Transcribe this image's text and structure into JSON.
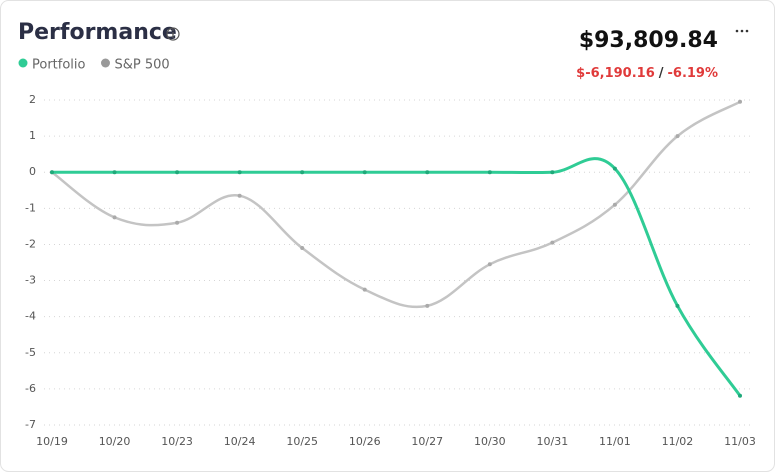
{
  "header": {
    "title": "Performance",
    "value": "$93,809.84",
    "change": "$-6,190.16",
    "separator": "/",
    "change_pct": "-6.19%"
  },
  "chart_data": {
    "type": "line",
    "categories": [
      "10/19",
      "10/20",
      "10/23",
      "10/24",
      "10/25",
      "10/26",
      "10/27",
      "10/30",
      "10/31",
      "11/01",
      "11/02",
      "11/03"
    ],
    "series": [
      {
        "name": "Portfolio",
        "color": "#2fcc95",
        "values": [
          0,
          0,
          0,
          0,
          0,
          0,
          0,
          0,
          0,
          0.1,
          -3.7,
          -6.19
        ]
      },
      {
        "name": "S&P 500",
        "color": "#c4c4c4",
        "values": [
          0,
          -1.25,
          -1.4,
          -0.65,
          -2.1,
          -3.25,
          -3.7,
          -2.55,
          -1.95,
          -0.9,
          1.0,
          1.95
        ]
      }
    ],
    "ylim": [
      -7,
      2
    ],
    "yticks": [
      2,
      1,
      0,
      -1,
      -2,
      -3,
      -4,
      -5,
      -6,
      -7
    ],
    "grid": true
  }
}
